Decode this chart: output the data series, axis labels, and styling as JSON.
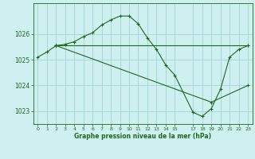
{
  "bg_color": "#cff0f0",
  "grid_color": "#a8d8d8",
  "line_color": "#1a6b1a",
  "marker_color": "#1a6b1a",
  "xlabel": "Graphe pression niveau de la mer (hPa)",
  "xlabel_color": "#1a6b1a",
  "ylabel_color": "#1a6b1a",
  "xlim": [
    -0.5,
    23.5
  ],
  "ylim": [
    1022.5,
    1027.2
  ],
  "yticks": [
    1023,
    1024,
    1025,
    1026
  ],
  "xticks": [
    0,
    1,
    2,
    3,
    4,
    5,
    6,
    7,
    8,
    9,
    10,
    11,
    12,
    13,
    14,
    15,
    17,
    18,
    19,
    20,
    21,
    22,
    23
  ],
  "series1_x": [
    0,
    1,
    2,
    3,
    4,
    5,
    6,
    7,
    8,
    9,
    10,
    11,
    12,
    13,
    14,
    15,
    17,
    18,
    19,
    20,
    21,
    22,
    23
  ],
  "series1_y": [
    1025.1,
    1025.3,
    1025.55,
    1025.6,
    1025.7,
    1025.9,
    1026.05,
    1026.35,
    1026.55,
    1026.7,
    1026.7,
    1026.4,
    1025.85,
    1025.4,
    1024.8,
    1024.4,
    1022.95,
    1022.8,
    1023.1,
    1023.85,
    1025.1,
    1025.4,
    1025.55
  ],
  "series2_x": [
    2,
    23
  ],
  "series2_y": [
    1025.55,
    1025.55
  ],
  "series3_x": [
    2,
    19,
    23
  ],
  "series3_y": [
    1025.55,
    1023.35,
    1024.0
  ],
  "figsize": [
    3.2,
    2.0
  ],
  "dpi": 100
}
